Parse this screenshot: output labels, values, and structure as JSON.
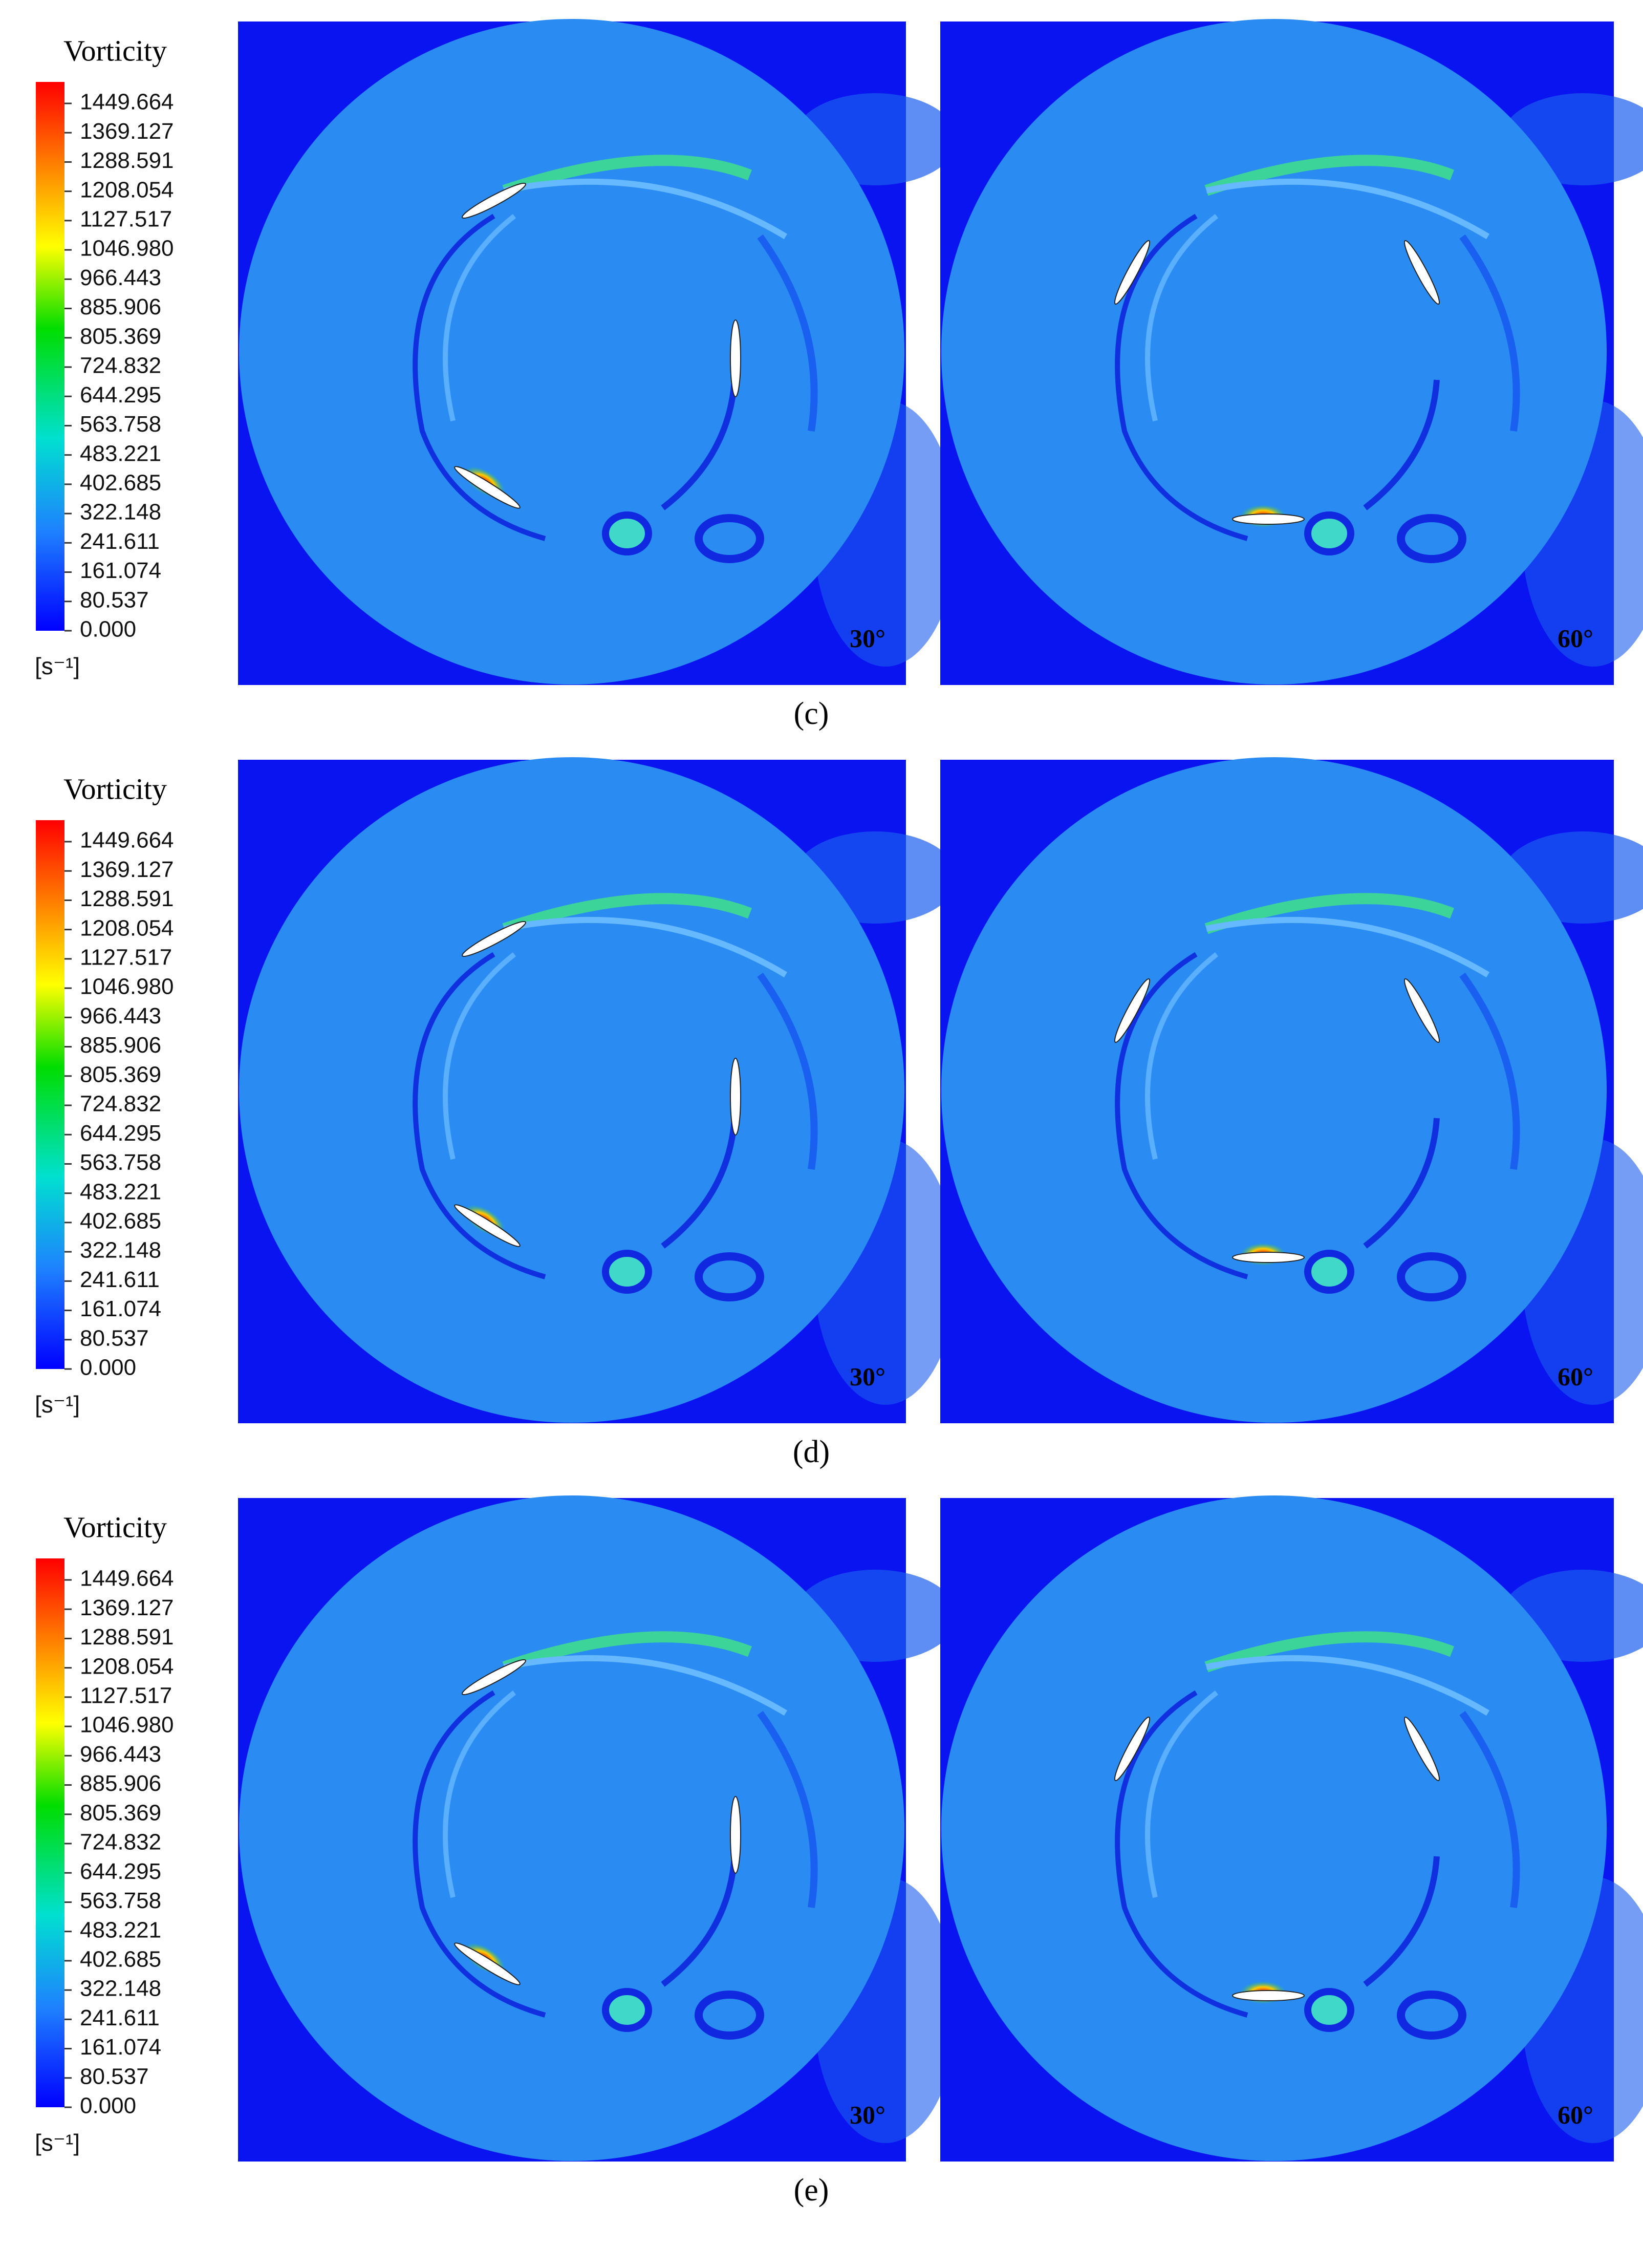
{
  "figures": [
    {
      "caption": "(c)",
      "colorbar": {
        "title": "Vorticity",
        "ticks": [
          "1449.664",
          "1369.127",
          "1288.591",
          "1208.054",
          "1127.517",
          "1046.980",
          "966.443",
          "885.906",
          "805.369",
          "724.832",
          "644.295",
          "563.758",
          "483.221",
          "402.685",
          "322.148",
          "241.611",
          "161.074",
          "80.537",
          "0.000"
        ],
        "unit": "[s⁻¹]"
      },
      "panels": [
        {
          "angle": "30°"
        },
        {
          "angle": "60°"
        }
      ]
    },
    {
      "caption": "(d)",
      "colorbar": {
        "title": "Vorticity",
        "ticks": [
          "1449.664",
          "1369.127",
          "1288.591",
          "1208.054",
          "1127.517",
          "1046.980",
          "966.443",
          "885.906",
          "805.369",
          "724.832",
          "644.295",
          "563.758",
          "483.221",
          "402.685",
          "322.148",
          "241.611",
          "161.074",
          "80.537",
          "0.000"
        ],
        "unit": "[s⁻¹]"
      },
      "panels": [
        {
          "angle": "30°"
        },
        {
          "angle": "60°"
        }
      ]
    },
    {
      "caption": "(e)",
      "colorbar": {
        "title": "Vorticity",
        "ticks": [
          "1449.664",
          "1369.127",
          "1288.591",
          "1208.054",
          "1127.517",
          "1046.980",
          "966.443",
          "885.906",
          "805.369",
          "724.832",
          "644.295",
          "563.758",
          "483.221",
          "402.685",
          "322.148",
          "241.611",
          "161.074",
          "80.537",
          "0.000"
        ],
        "unit": "[s⁻¹]"
      },
      "panels": [
        {
          "angle": "30°"
        },
        {
          "angle": "60°"
        }
      ]
    }
  ]
}
